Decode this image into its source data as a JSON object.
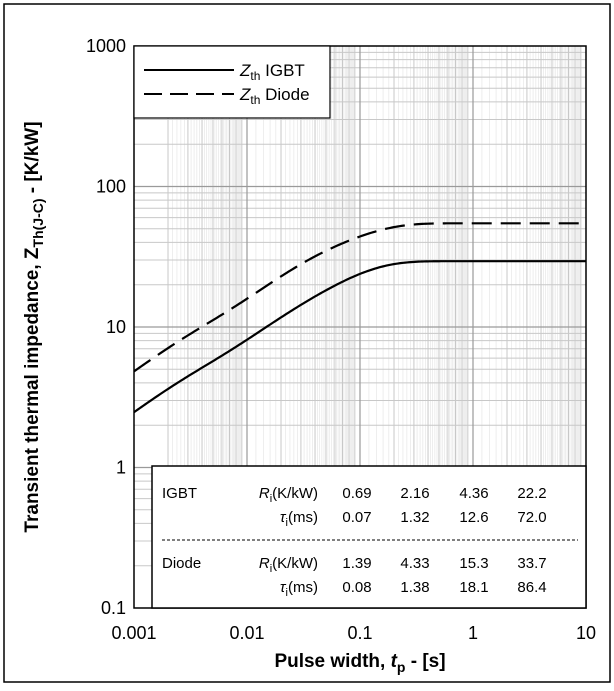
{
  "chart_data": {
    "type": "line",
    "xscale": "log",
    "yscale": "log",
    "xlim": [
      0.001,
      10
    ],
    "ylim": [
      0.1,
      1000
    ],
    "grid": true,
    "x_ticks": [
      "0.001",
      "0.01",
      "0.1",
      "1",
      "10"
    ],
    "y_ticks": [
      "0.1",
      "1",
      "10",
      "100",
      "1000"
    ],
    "xlabel": {
      "main": "Pulse width, ",
      "var": "t",
      "sub": "p",
      "tail": " - [s]"
    },
    "ylabel": {
      "main": "Transient thermal impedance, Z",
      "sub": "Th(J-C)",
      "tail": " - [K/kW]"
    },
    "legend_position": "top-left",
    "series": [
      {
        "name": {
          "sym": "Z",
          "sub": "th",
          "label": " IGBT"
        },
        "style": "solid",
        "R_K_per_kW": [
          0.69,
          2.16,
          4.36,
          22.2
        ],
        "tau_ms": [
          0.07,
          1.32,
          12.6,
          72.0
        ]
      },
      {
        "name": {
          "sym": "Z",
          "sub": "th",
          "label": " Diode"
        },
        "style": "dashed",
        "R_K_per_kW": [
          1.39,
          4.33,
          15.3,
          33.7
        ],
        "tau_ms": [
          0.08,
          1.38,
          18.1,
          86.4
        ]
      }
    ],
    "parameter_table": {
      "rows": [
        {
          "device": "IGBT",
          "r_sym": "R",
          "r_sub": "i",
          "r_unit": "(K/kW)",
          "t_sym": "τ",
          "t_sub": "i",
          "t_unit": "(ms)",
          "r_values": [
            "0.69",
            "2.16",
            "4.36",
            "22.2"
          ],
          "t_values": [
            "0.07",
            "1.32",
            "12.6",
            "72.0"
          ]
        },
        {
          "device": "Diode",
          "r_sym": "R",
          "r_sub": "i",
          "r_unit": "(K/kW)",
          "t_sym": "τ",
          "t_sub": "i",
          "t_unit": "(ms)",
          "r_values": [
            "1.39",
            "4.33",
            "15.3",
            "33.7"
          ],
          "t_values": [
            "0.08",
            "1.38",
            "18.1",
            "86.4"
          ]
        }
      ]
    }
  }
}
